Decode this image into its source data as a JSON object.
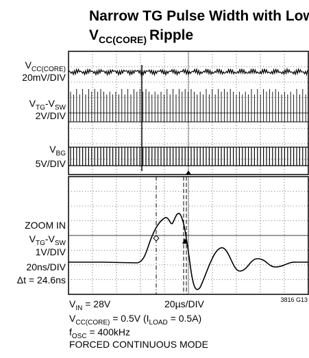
{
  "title": {
    "line1": "Narrow TG Pulse Width with Low",
    "line2": [
      "V",
      "CC(CORE)",
      "Ripple"
    ]
  },
  "channels": [
    {
      "name": [
        "V",
        "CC(CORE)"
      ],
      "scale": "20mV/DIV"
    },
    {
      "name": [
        "V",
        "TG",
        "-V",
        "SW"
      ],
      "scale": "2V/DIV"
    },
    {
      "name": [
        "V",
        "BG"
      ],
      "scale": "5V/DIV"
    }
  ],
  "zoom": {
    "label": "ZOOM IN",
    "name": [
      "V",
      "TG",
      "-V",
      "SW"
    ],
    "scale": "1V/DIV",
    "timebase": "20ns/DIV",
    "delta": "Δt = 24.6ns"
  },
  "footer": {
    "vin": [
      "V",
      "IN",
      " = 28V"
    ],
    "timebase": "20µs/DIV",
    "code": "3816 G13",
    "vcc": [
      "V",
      "CC(CORE)",
      " = 0.5V (I",
      "LOAD",
      " = 0.5A)"
    ],
    "fosc": [
      "f",
      "OSC",
      " = 400kHz"
    ],
    "mode": "FORCED CONTINUOUS MODE"
  }
}
